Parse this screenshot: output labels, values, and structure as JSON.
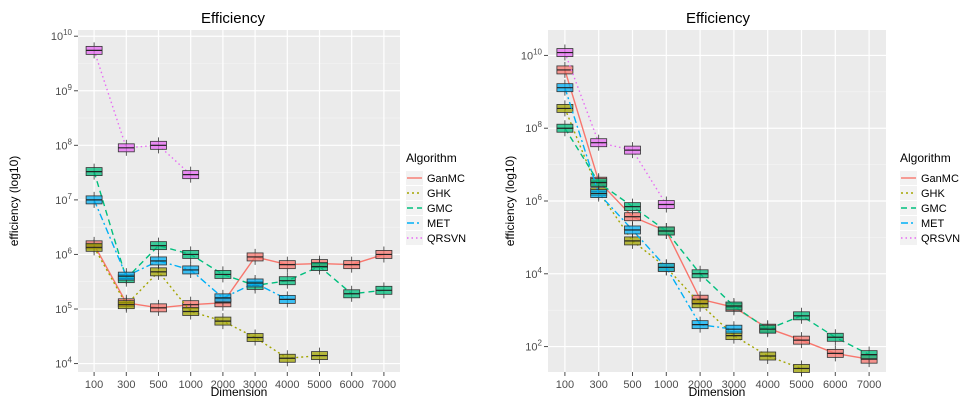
{
  "chart_data": [
    {
      "type": "box",
      "title": "Efficiency",
      "xlabel": "Dimension",
      "ylabel": "efficiency (log10)",
      "y_scale": "log10",
      "ylim": [
        7000,
        13000000000
      ],
      "categories": [
        "100",
        "300",
        "500",
        "1000",
        "2000",
        "3000",
        "4000",
        "5000",
        "6000",
        "7000"
      ],
      "yticks": [
        {
          "value": 10000,
          "exp": "4"
        },
        {
          "value": 100000,
          "exp": "5"
        },
        {
          "value": 1000000,
          "exp": "6"
        },
        {
          "value": 10000000,
          "exp": "7"
        },
        {
          "value": 100000000,
          "exp": "8"
        },
        {
          "value": 1000000000,
          "exp": "9"
        },
        {
          "value": 10000000000,
          "exp": "10"
        }
      ],
      "grid": true,
      "legend": {
        "title": "Algorithm",
        "placement": "right",
        "entries": [
          {
            "name": "GanMC",
            "color": "#f8766d",
            "dash": "solid"
          },
          {
            "name": "GHK",
            "color": "#a3a500",
            "dash": "dotted"
          },
          {
            "name": "GMC",
            "color": "#00bf7d",
            "dash": "dashed"
          },
          {
            "name": "MET",
            "color": "#00b0f6",
            "dash": "dotdash"
          },
          {
            "name": "QRSVN",
            "color": "#e76bf3",
            "dash": "dotted-fine"
          }
        ]
      },
      "series": [
        {
          "name": "GanMC",
          "median": [
            1500000,
            130000,
            105000,
            120000,
            130000,
            900000,
            650000,
            680000,
            650000,
            1000000
          ]
        },
        {
          "name": "GHK",
          "median": [
            1350000,
            120000,
            480000,
            90000,
            60000,
            30000,
            12500,
            14000,
            null,
            null
          ]
        },
        {
          "name": "GMC",
          "median": [
            33000000,
            360000,
            1450000,
            1000000,
            430000,
            270000,
            330000,
            600000,
            190000,
            220000
          ]
        },
        {
          "name": "MET",
          "median": [
            10000000,
            400000,
            760000,
            520000,
            160000,
            300000,
            150000,
            null,
            null,
            null
          ]
        },
        {
          "name": "QRSVN",
          "median": [
            5500000000,
            90000000,
            100000000,
            29000000,
            null,
            null,
            null,
            null,
            null,
            null
          ]
        }
      ]
    },
    {
      "type": "box",
      "title": "Efficiency",
      "xlabel": "Dimension",
      "ylabel": "efficiency (log10)",
      "y_scale": "log10",
      "ylim": [
        20,
        50000000000
      ],
      "categories": [
        "100",
        "300",
        "500",
        "1000",
        "2000",
        "3000",
        "4000",
        "5000",
        "6000",
        "7000"
      ],
      "yticks": [
        {
          "value": 100,
          "exp": "2"
        },
        {
          "value": 10000,
          "exp": "4"
        },
        {
          "value": 1000000,
          "exp": "6"
        },
        {
          "value": 100000000,
          "exp": "8"
        },
        {
          "value": 10000000000,
          "exp": "10"
        }
      ],
      "grid": true,
      "legend": {
        "title": "Algorithm",
        "placement": "right",
        "entries": [
          {
            "name": "GanMC",
            "color": "#f8766d",
            "dash": "solid"
          },
          {
            "name": "GHK",
            "color": "#a3a500",
            "dash": "dotted"
          },
          {
            "name": "GMC",
            "color": "#00bf7d",
            "dash": "dashed"
          },
          {
            "name": "MET",
            "color": "#00b0f6",
            "dash": "dotdash"
          },
          {
            "name": "QRSVN",
            "color": "#e76bf3",
            "dash": "dotted-fine"
          }
        ]
      },
      "series": [
        {
          "name": "GanMC",
          "median": [
            4000000000,
            3500000,
            370000,
            150000,
            2000,
            1200,
            320,
            150,
            65,
            45
          ]
        },
        {
          "name": "GHK",
          "median": [
            350000000,
            1800000,
            80000,
            15000,
            1500,
            200,
            55,
            25,
            null,
            null
          ]
        },
        {
          "name": "GMC",
          "median": [
            100000000,
            3200000,
            700000,
            150000,
            10000,
            1300,
            300,
            700,
            180,
            60
          ]
        },
        {
          "name": "MET",
          "median": [
            1300000000,
            1600000,
            160000,
            15000,
            400,
            300,
            null,
            null,
            null,
            null
          ]
        },
        {
          "name": "QRSVN",
          "median": [
            12000000000,
            40000000,
            25000000,
            800000,
            null,
            null,
            null,
            null,
            null,
            null
          ]
        }
      ]
    }
  ]
}
